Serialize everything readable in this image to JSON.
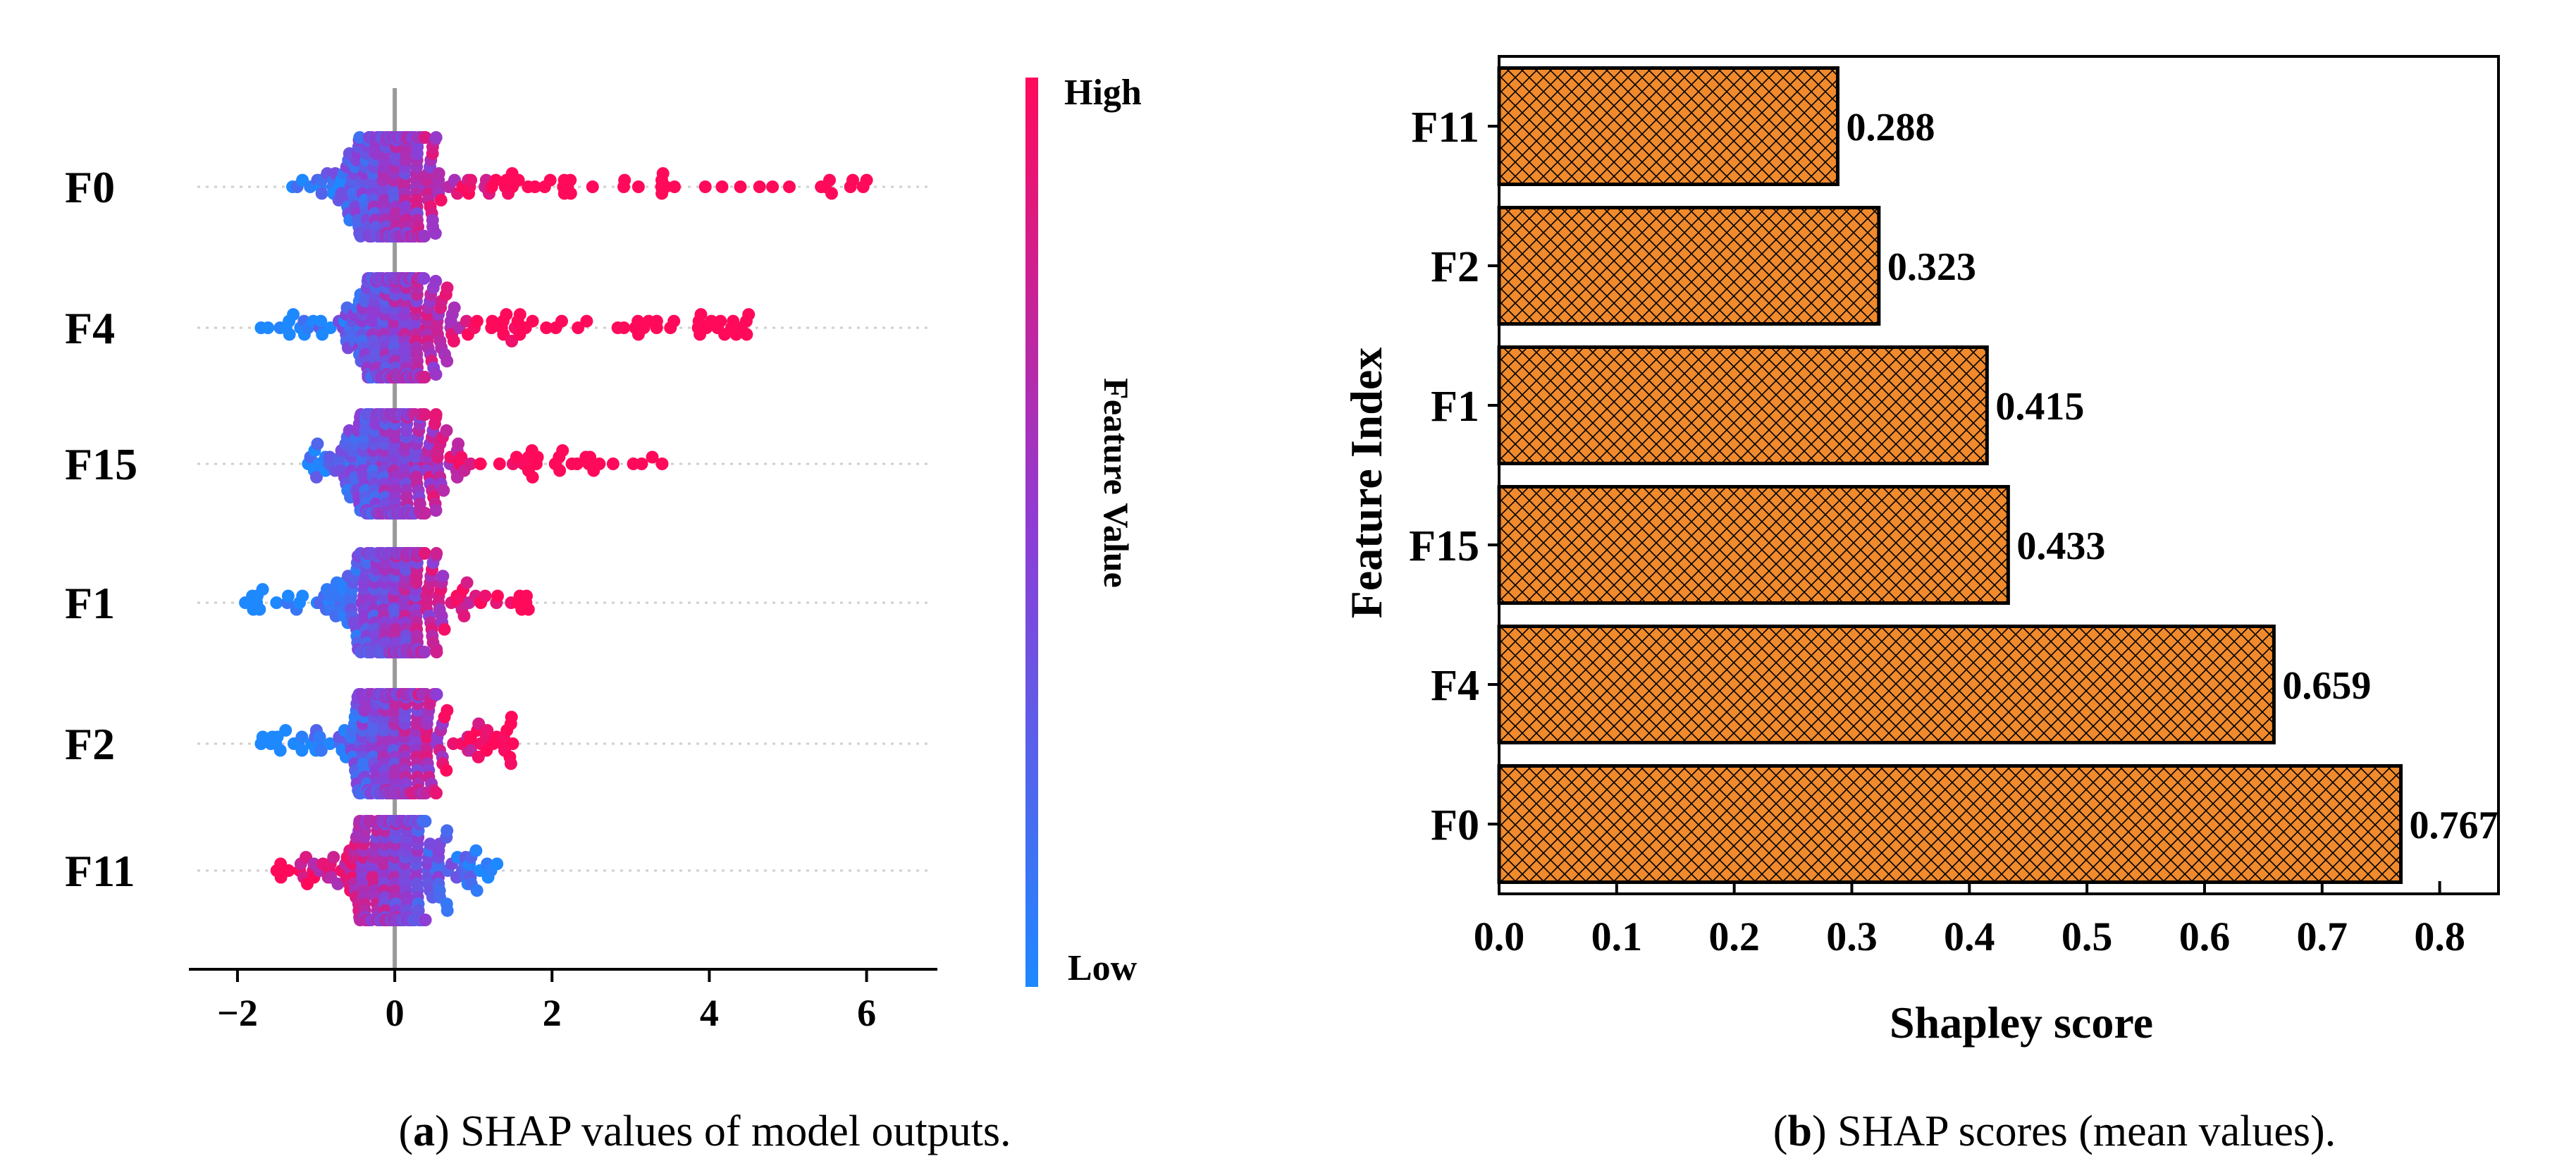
{
  "chart_data": [
    {
      "type": "scatter",
      "subtype": "shap-beeswarm",
      "panel_label": "(a)",
      "caption_letter": "a",
      "caption_text": " SHAP values of model outputs.",
      "features": [
        "F0",
        "F4",
        "F15",
        "F1",
        "F2",
        "F11"
      ],
      "xlim": [
        -2.6,
        6.9
      ],
      "xticks": [
        -2,
        0,
        2,
        4,
        6
      ],
      "xtick_labels": [
        "−2",
        "0",
        "2",
        "4",
        "6"
      ],
      "colorbar": {
        "label": "Feature Value",
        "high_label": "High",
        "low_label": "Low",
        "low_color": "#1e88ff",
        "high_color": "#ff0a5b"
      },
      "ranges": [
        {
          "feature": "F0",
          "min": -1.3,
          "max": 6.0
        },
        {
          "feature": "F4",
          "min": -1.7,
          "max": 4.5
        },
        {
          "feature": "F15",
          "min": -1.1,
          "max": 3.4
        },
        {
          "feature": "F1",
          "min": -1.9,
          "max": 1.7
        },
        {
          "feature": "F2",
          "min": -1.7,
          "max": 1.5
        },
        {
          "feature": "F11",
          "min": -1.5,
          "max": 1.3
        }
      ]
    },
    {
      "type": "bar",
      "orientation": "horizontal",
      "panel_label": "(b)",
      "caption_letter": "b",
      "caption_text": " SHAP scores (mean values).",
      "categories": [
        "F11",
        "F2",
        "F1",
        "F15",
        "F4",
        "F0"
      ],
      "values": [
        0.288,
        0.323,
        0.415,
        0.433,
        0.659,
        0.767
      ],
      "value_labels": [
        "0.288",
        "0.323",
        "0.415",
        "0.433",
        "0.659",
        "0.767"
      ],
      "xlabel": "Shapley score",
      "ylabel": "Feature Index",
      "xlim": [
        0,
        0.85
      ],
      "xticks": [
        0.0,
        0.1,
        0.2,
        0.3,
        0.4,
        0.5,
        0.6,
        0.7,
        0.8
      ],
      "xtick_labels": [
        "0.0",
        "0.1",
        "0.2",
        "0.3",
        "0.4",
        "0.5",
        "0.6",
        "0.7",
        "0.8"
      ],
      "bar_color": "#f08a2c",
      "hatch_color": "#000000"
    }
  ]
}
